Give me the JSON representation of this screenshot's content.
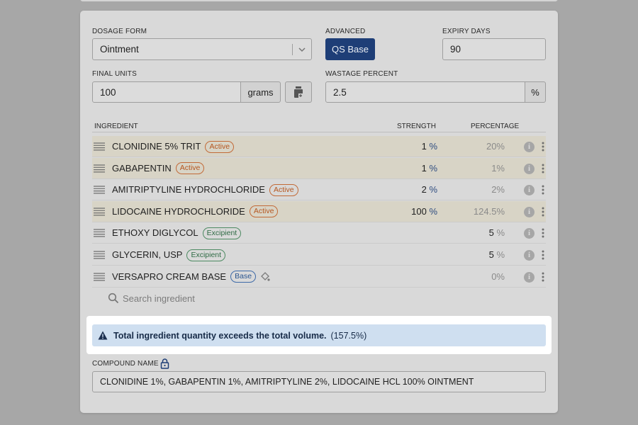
{
  "form": {
    "dosage_form": {
      "label": "DOSAGE FORM",
      "value": "Ointment"
    },
    "advanced": {
      "label": "ADVANCED",
      "button": "QS Base"
    },
    "expiry_days": {
      "label": "EXPIRY DAYS",
      "value": "90"
    },
    "final_units": {
      "label": "FINAL UNITS",
      "value": "100",
      "unit": "grams"
    },
    "wastage_percent": {
      "label": "WASTAGE PERCENT",
      "value": "2.5",
      "unit": "%"
    }
  },
  "table": {
    "headers": [
      "INGREDIENT",
      "STRENGTH",
      "PERCENTAGE"
    ],
    "rows": [
      {
        "name": "CLONIDINE 5% TRIT",
        "tag": "Active",
        "strength": "1",
        "strength_unit": "%",
        "percentage": "20%"
      },
      {
        "name": "GABAPENTIN",
        "tag": "Active",
        "strength": "1",
        "strength_unit": "%",
        "percentage": "1%"
      },
      {
        "name": "AMITRIPTYLINE HYDROCHLORIDE",
        "tag": "Active",
        "strength": "2",
        "strength_unit": "%",
        "percentage": "2%"
      },
      {
        "name": "LIDOCAINE HYDROCHLORIDE",
        "tag": "Active",
        "strength": "100",
        "strength_unit": "%",
        "percentage": "124.5%"
      },
      {
        "name": "ETHOXY DIGLYCOL",
        "tag": "Excipient",
        "percentage": "5",
        "percentage_unit": "%"
      },
      {
        "name": "GLYCERIN, USP",
        "tag": "Excipient",
        "percentage": "5",
        "percentage_unit": "%"
      },
      {
        "name": "VERSAPRO CREAM BASE",
        "tag": "Base",
        "percentage": "0%"
      }
    ],
    "search_placeholder": "Search ingredient"
  },
  "alert": {
    "message": "Total ingredient quantity exceeds the total volume.",
    "detail": "(157.5%)"
  },
  "compound_name": {
    "label": "COMPOUND NAME",
    "value": "CLONIDINE 1%, GABAPENTIN 1%, AMITRIPTYLINE 2%, LIDOCAINE HCL 100% OINTMENT"
  }
}
